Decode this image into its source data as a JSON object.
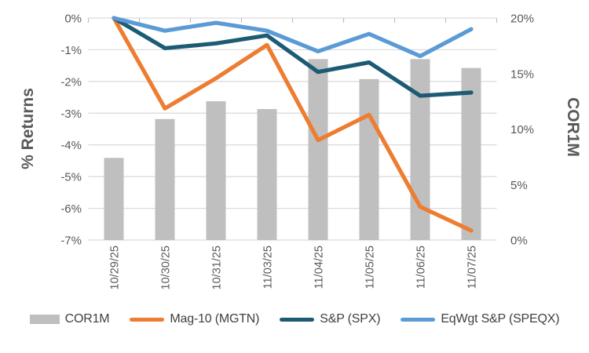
{
  "chart_data": {
    "type": "combo-bar-line",
    "categories": [
      "10/29/25",
      "10/30/25",
      "10/31/25",
      "11/03/25",
      "11/04/25",
      "11/05/25",
      "11/06/25",
      "11/07/25"
    ],
    "bar_series": {
      "name": "COR1M",
      "axis": "right",
      "color": "#bfbfbf",
      "values": [
        7.4,
        10.9,
        12.5,
        11.8,
        16.3,
        14.5,
        16.3,
        15.5
      ]
    },
    "line_series": [
      {
        "name": "Mag-10 (MGTN)",
        "axis": "left",
        "color": "#ed7d31",
        "values": [
          0,
          -2.85,
          -1.9,
          -0.85,
          -3.85,
          -3.05,
          -5.95,
          -6.7
        ]
      },
      {
        "name": "S&P (SPX)",
        "axis": "left",
        "color": "#1d5b75",
        "values": [
          0,
          -0.95,
          -0.8,
          -0.55,
          -1.7,
          -1.4,
          -2.45,
          -2.35
        ]
      },
      {
        "name": "EqWgt S&P (SPEQX)",
        "axis": "left",
        "color": "#5b9bd5",
        "values": [
          0,
          -0.4,
          -0.15,
          -0.4,
          -1.05,
          -0.5,
          -1.2,
          -0.35
        ]
      }
    ],
    "left_axis": {
      "title": "% Returns",
      "min": -7,
      "max": 0,
      "tick_labels": [
        "0%",
        "-1%",
        "-2%",
        "-3%",
        "-4%",
        "-5%",
        "-6%",
        "-7%"
      ]
    },
    "right_axis": {
      "title": "COR1M",
      "min": 0,
      "max": 20,
      "tick_labels": [
        "20%",
        "15%",
        "10%",
        "5%",
        "0%"
      ]
    },
    "legend": [
      {
        "label": "COR1M",
        "swatch": "bar",
        "color": "#bfbfbf"
      },
      {
        "label": "Mag-10 (MGTN)",
        "swatch": "line",
        "color": "#ed7d31"
      },
      {
        "label": "S&P (SPX)",
        "swatch": "line",
        "color": "#1d5b75"
      },
      {
        "label": "EqWgt S&P (SPEQX)",
        "swatch": "line",
        "color": "#5b9bd5"
      }
    ],
    "grid": true,
    "legend_position": "bottom"
  },
  "style": {
    "gridline_color": "#d9d9d9",
    "tick_color": "#bfbfbf",
    "axis_text_color": "#595959",
    "legend_text_color": "#404040",
    "background": "#ffffff"
  }
}
